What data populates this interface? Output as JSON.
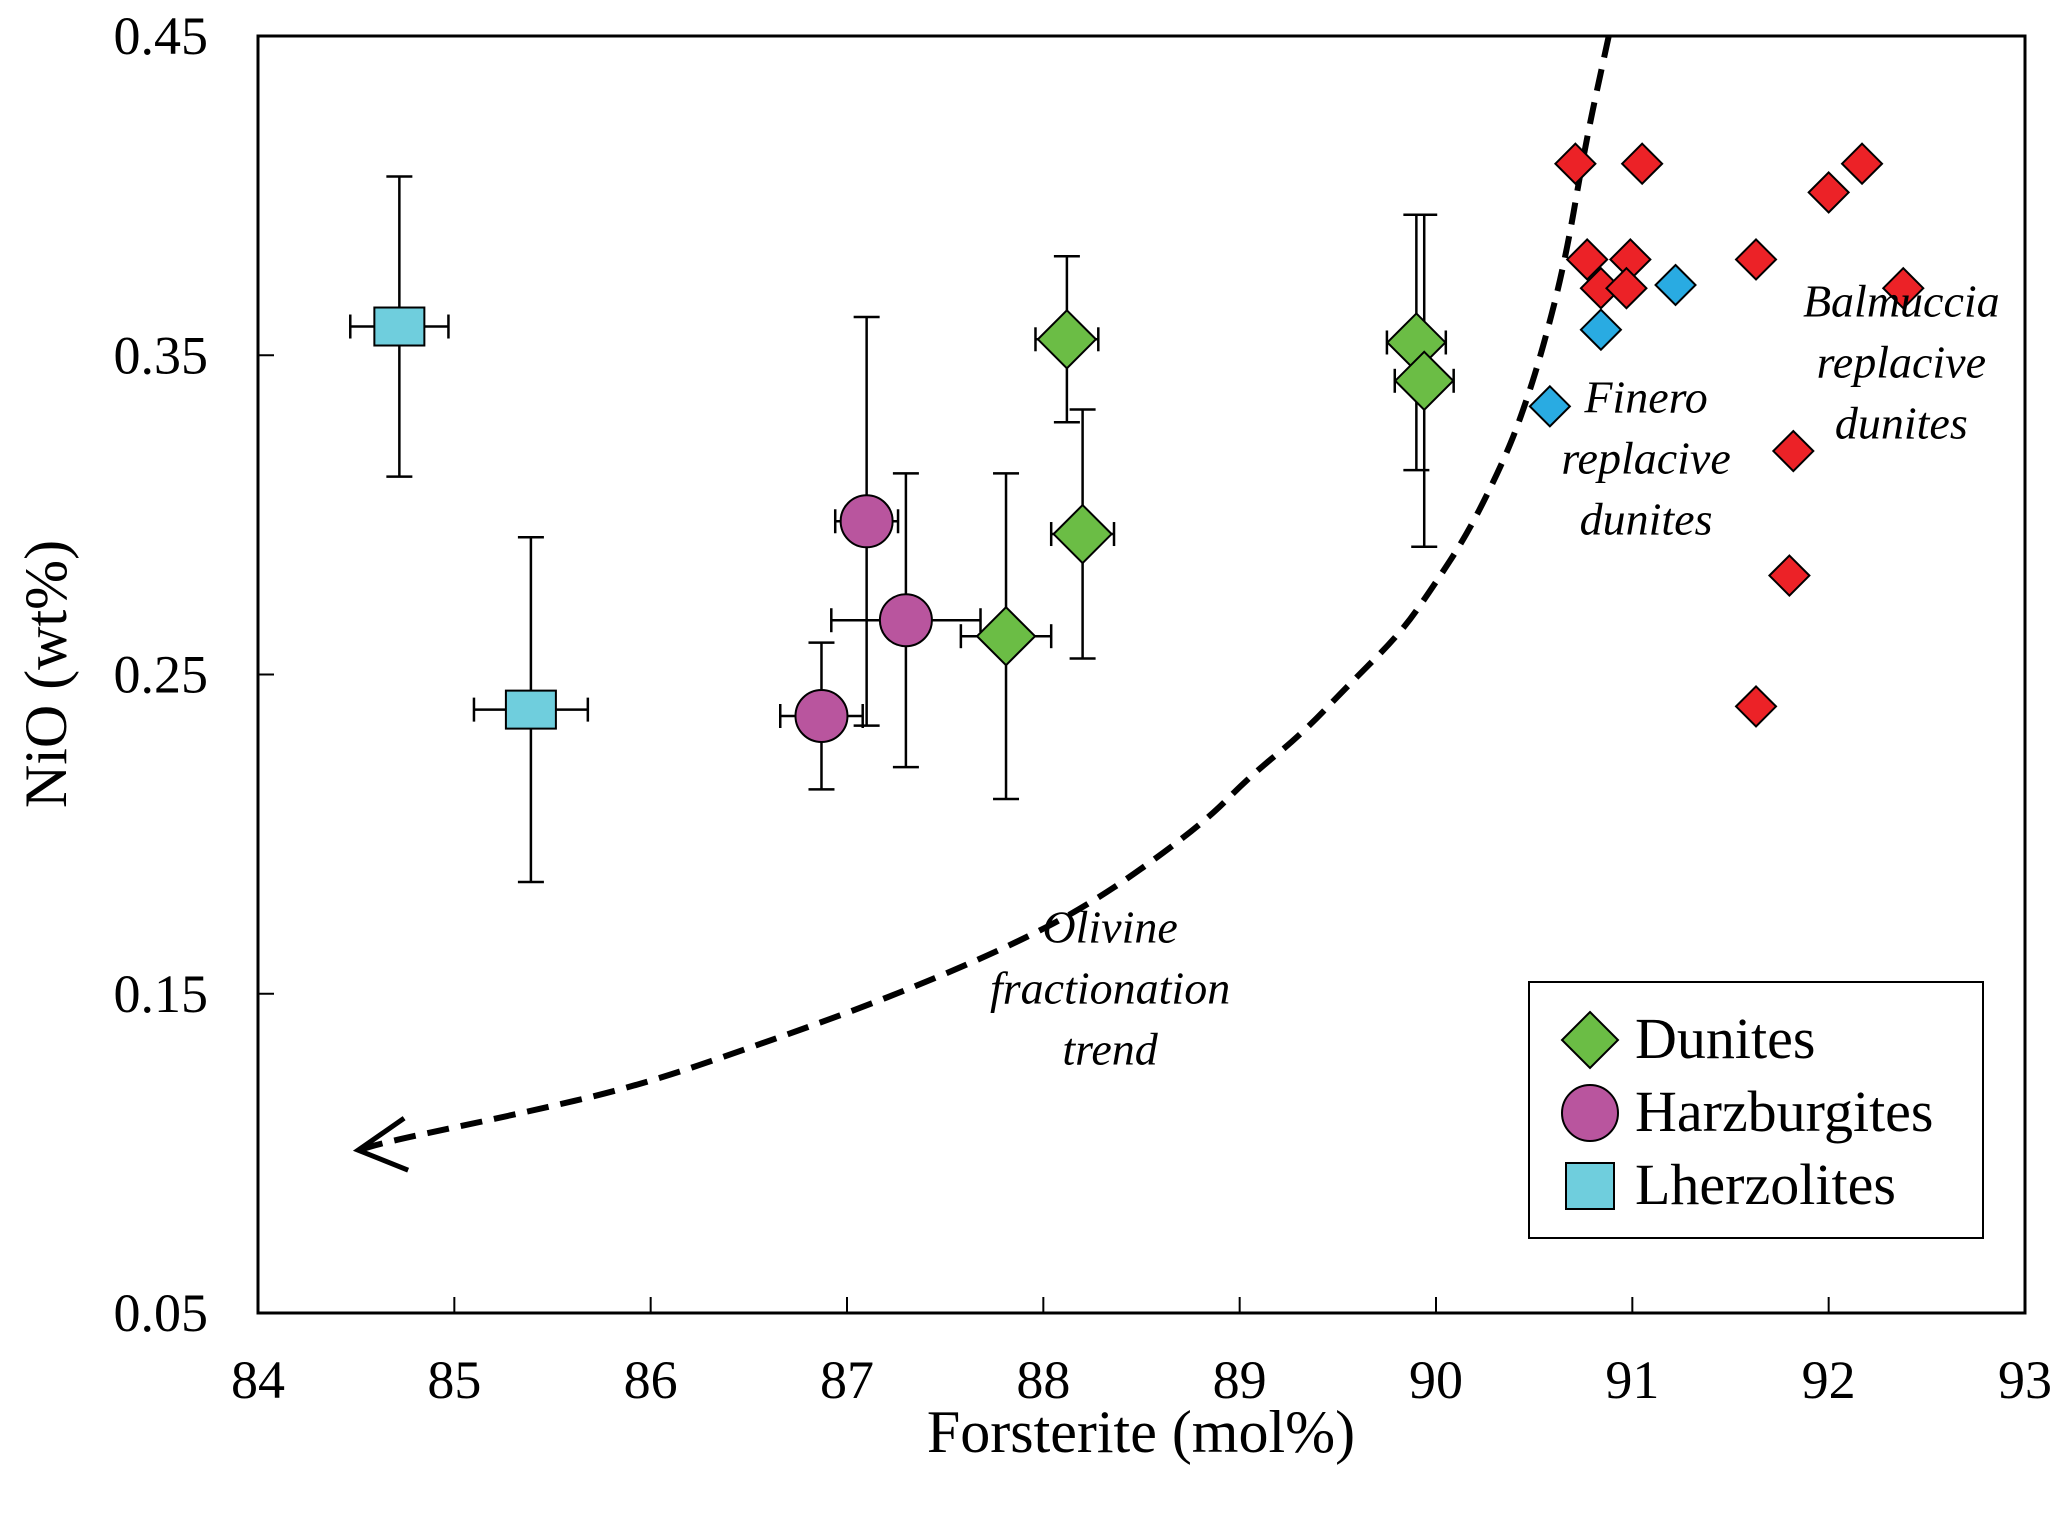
{
  "chart_data": {
    "type": "scatter",
    "title": "",
    "xlabel": "Forsterite (mol%)",
    "ylabel": "NiO (wt%)",
    "xlim": [
      84,
      93
    ],
    "ylim": [
      0.05,
      0.45
    ],
    "xticks": [
      84,
      85,
      86,
      87,
      88,
      89,
      90,
      91,
      92,
      93
    ],
    "xtick_labels": [
      "84",
      "85",
      "86",
      "87",
      "88",
      "89",
      "90",
      "91",
      "92",
      "93"
    ],
    "yticks": [
      0.05,
      0.15,
      0.25,
      0.35,
      0.45
    ],
    "ytick_labels": [
      "0.05",
      "0.15",
      "0.25",
      "0.35",
      "0.45"
    ],
    "grid": false,
    "legend_position": "bottom-right",
    "series": [
      {
        "name": "Dunites",
        "marker": "diamond",
        "color": "#6BBD45",
        "in_legend": true,
        "points": [
          {
            "x": 88.12,
            "y": 0.355,
            "xerr": 0.16,
            "yerr": 0.026
          },
          {
            "x": 88.2,
            "y": 0.294,
            "xerr": 0.16,
            "yerr": 0.039
          },
          {
            "x": 87.81,
            "y": 0.262,
            "xerr": 0.23,
            "yerr": 0.051
          },
          {
            "x": 89.9,
            "y": 0.354,
            "xerr": 0.15,
            "yerr": 0.04
          },
          {
            "x": 89.94,
            "y": 0.342,
            "xerr": 0.15,
            "yerr": 0.052
          }
        ]
      },
      {
        "name": "Harzburgites",
        "marker": "circle",
        "color": "#B9559E",
        "in_legend": true,
        "points": [
          {
            "x": 87.1,
            "y": 0.298,
            "xerr": 0.16,
            "yerr": 0.064
          },
          {
            "x": 87.3,
            "y": 0.267,
            "xerr": 0.38,
            "yerr": 0.046
          },
          {
            "x": 86.87,
            "y": 0.237,
            "xerr": 0.21,
            "yerr": 0.023
          }
        ]
      },
      {
        "name": "Lherzolites",
        "marker": "square",
        "color": "#6FCEDD",
        "in_legend": true,
        "points": [
          {
            "x": 84.72,
            "y": 0.359,
            "xerr": 0.25,
            "yerr": 0.047
          },
          {
            "x": 85.39,
            "y": 0.239,
            "xerr": 0.29,
            "yerr": 0.054
          }
        ]
      },
      {
        "name": "Finero replacive dunites",
        "marker": "diamond-small",
        "color": "#29ABE2",
        "in_legend": false,
        "points": [
          {
            "x": 91.22,
            "y": 0.372
          },
          {
            "x": 90.84,
            "y": 0.358
          },
          {
            "x": 90.58,
            "y": 0.334
          }
        ]
      },
      {
        "name": "Balmuccia replacive dunites",
        "marker": "diamond-small",
        "color": "#EC2227",
        "in_legend": false,
        "points": [
          {
            "x": 90.71,
            "y": 0.41
          },
          {
            "x": 91.05,
            "y": 0.41
          },
          {
            "x": 90.77,
            "y": 0.38
          },
          {
            "x": 90.99,
            "y": 0.38
          },
          {
            "x": 90.84,
            "y": 0.371
          },
          {
            "x": 90.97,
            "y": 0.371
          },
          {
            "x": 92.17,
            "y": 0.41
          },
          {
            "x": 92.0,
            "y": 0.401
          },
          {
            "x": 91.63,
            "y": 0.38
          },
          {
            "x": 92.38,
            "y": 0.371
          },
          {
            "x": 91.82,
            "y": 0.32
          },
          {
            "x": 91.8,
            "y": 0.281
          },
          {
            "x": 91.63,
            "y": 0.24
          }
        ]
      }
    ],
    "trend_line": {
      "label": "Olivine fractionation trend",
      "style": "dashed",
      "arrow_at": "end",
      "points": [
        [
          90.88,
          0.45
        ],
        [
          90.76,
          0.416
        ],
        [
          90.66,
          0.38
        ],
        [
          90.54,
          0.351
        ],
        [
          90.43,
          0.33
        ],
        [
          90.33,
          0.315
        ],
        [
          90.16,
          0.294
        ],
        [
          89.98,
          0.277
        ],
        [
          89.82,
          0.263
        ],
        [
          89.56,
          0.247
        ],
        [
          89.31,
          0.231
        ],
        [
          89.05,
          0.218
        ],
        [
          88.81,
          0.203
        ],
        [
          88.27,
          0.179
        ],
        [
          87.8,
          0.164
        ],
        [
          87.18,
          0.148
        ],
        [
          86.55,
          0.134
        ],
        [
          85.93,
          0.121
        ],
        [
          85.3,
          0.112
        ],
        [
          84.68,
          0.104
        ],
        [
          84.51,
          0.101
        ]
      ]
    },
    "annotations": [
      {
        "id": "finero",
        "lines": [
          "Finero",
          "replacive",
          "dunites"
        ],
        "x": 91.07,
        "y": 0.318
      },
      {
        "id": "balmuccia",
        "lines": [
          "Balmuccia",
          "replacive",
          "dunites"
        ],
        "x": 92.37,
        "y": 0.348
      },
      {
        "id": "olivine",
        "lines": [
          "Olivine",
          "fractionation",
          "trend"
        ],
        "x": 88.34,
        "y": 0.152
      }
    ]
  }
}
